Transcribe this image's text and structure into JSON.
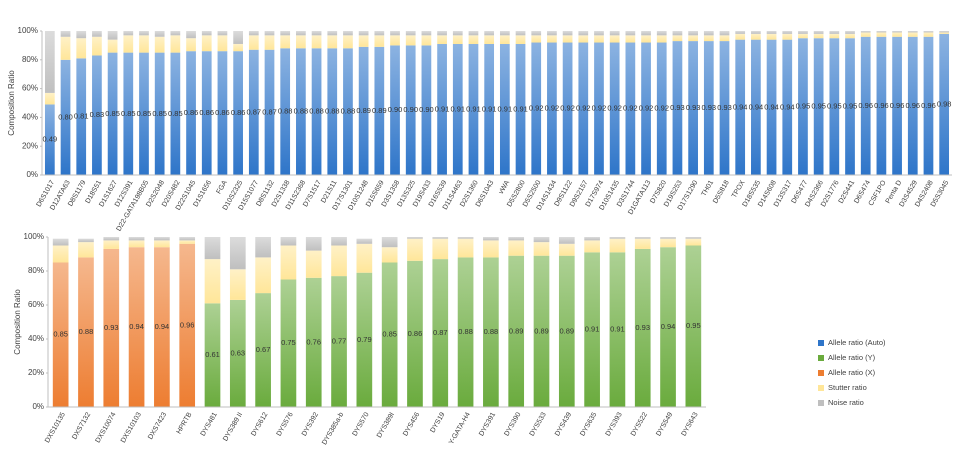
{
  "chart_data": [
    {
      "type": "bar",
      "stacked": true,
      "ylabel": "Composition Ratio",
      "categories": [
        "D6S1017",
        "D12ATA63",
        "D8S1179",
        "D18S51",
        "D1S1627",
        "D12S391",
        "D22-GATA198B05",
        "D2S2048",
        "D20S482",
        "D22S1045",
        "D1S1656",
        "FGA",
        "D10S2325",
        "D15S1077",
        "D8S1132",
        "D2S1338",
        "D11S2368",
        "D7S1517",
        "D21S11",
        "D17S1301",
        "D10S1248",
        "D15S659",
        "D3S1358",
        "D13S325",
        "D19S433",
        "D16S539",
        "D11S4463",
        "D2S1360",
        "D6S1043",
        "vWA",
        "D5S2800",
        "D5S2500",
        "D14S1434",
        "D9S1122",
        "D9S2157",
        "D17S974",
        "D10S1435",
        "D3S1744",
        "D1GATA113",
        "D7S820",
        "D19S253",
        "D17S1290",
        "TH01",
        "D5S818",
        "TPOX",
        "D18S535",
        "D14S608",
        "D13S317",
        "D6S477",
        "D4S2366",
        "D2S1776",
        "D2S441",
        "D6S474",
        "CSF1PO",
        "Penta D",
        "D3S4529",
        "D4S2408",
        "D5S3045"
      ],
      "series": [
        {
          "name": "Allele ratio (Auto)",
          "color": "#2e75c9",
          "values": [
            49,
            80,
            81,
            83,
            85,
            85,
            85,
            85,
            85,
            86,
            86,
            86,
            86,
            87,
            87,
            88,
            88,
            88,
            88,
            88,
            89,
            89,
            90,
            90,
            90,
            91,
            91,
            91,
            91,
            91,
            91,
            92,
            92,
            92,
            92,
            92,
            92,
            92,
            92,
            92,
            93,
            93,
            93,
            93,
            94,
            94,
            94,
            94,
            95,
            95,
            95,
            95,
            96,
            96,
            96,
            96,
            96,
            98
          ],
          "value_labels": [
            "0.49",
            "0.80",
            "0.81",
            "0.83",
            "0.85",
            "0.85",
            "0.85",
            "0.85",
            "0.85",
            "0.86",
            "0.86",
            "0.86",
            "0.86",
            "0.87",
            "0.87",
            "0.88",
            "0.88",
            "0.88",
            "0.88",
            "0.88",
            "0.89",
            "0.89",
            "0.90",
            "0.90",
            "0.90",
            "0.91",
            "0.91",
            "0.91",
            "0.91",
            "0.91",
            "0.91",
            "0.92",
            "0.92",
            "0.92",
            "0.92",
            "0.92",
            "0.92",
            "0.92",
            "0.92",
            "0.92",
            "0.93",
            "0.93",
            "0.93",
            "0.93",
            "0.94",
            "0.94",
            "0.94",
            "0.94",
            "0.95",
            "0.95",
            "0.95",
            "0.95",
            "0.96",
            "0.96",
            "0.96",
            "0.96",
            "0.96",
            "0.98"
          ]
        },
        {
          "color": "#ffe699",
          "values": [
            8,
            16,
            14,
            13,
            9,
            12,
            12,
            11,
            12,
            9,
            11,
            11,
            5,
            10,
            10,
            9,
            9,
            9,
            9,
            9,
            8,
            8,
            7,
            7,
            7,
            6,
            6,
            6,
            6,
            6,
            6,
            5,
            5,
            5,
            5,
            5,
            5,
            5,
            5,
            5,
            4,
            4,
            4,
            4,
            4,
            4,
            4,
            4,
            3,
            3,
            3,
            3,
            3,
            3,
            3,
            3,
            3,
            1
          ]
        },
        {
          "color": "#bfbfbf",
          "values": [
            43,
            4,
            5,
            4,
            6,
            3,
            3,
            4,
            3,
            5,
            3,
            3,
            9,
            3,
            3,
            3,
            3,
            3,
            3,
            3,
            3,
            3,
            3,
            3,
            3,
            3,
            3,
            3,
            3,
            3,
            3,
            3,
            3,
            3,
            3,
            3,
            3,
            3,
            3,
            3,
            3,
            3,
            3,
            3,
            2,
            2,
            2,
            2,
            2,
            2,
            2,
            2,
            1,
            1,
            1,
            1,
            1,
            1
          ]
        }
      ],
      "ylim": [
        0,
        100
      ],
      "yticks": [
        {
          "value": 0,
          "label": "0%"
        },
        {
          "value": 20,
          "label": "20%"
        },
        {
          "value": 40,
          "label": "40%"
        },
        {
          "value": 60,
          "label": "60%"
        },
        {
          "value": 80,
          "label": "80%"
        },
        {
          "value": 100,
          "label": "100%"
        }
      ],
      "grid": false
    },
    {
      "type": "bar",
      "stacked": true,
      "ylabel": "Composition Ratio",
      "categories": [
        "DXS10135",
        "DXS7132",
        "DXS10074",
        "DXS10103",
        "DXS7423",
        "HPRTB",
        "DYS481",
        "DYS389 II",
        "DYS612",
        "DYS576",
        "DYS392",
        "DYS385a-b",
        "DYS570",
        "DYS389I",
        "DYS456",
        "DYS19",
        "Y-GATA-H4",
        "DYS391",
        "DYS390",
        "DYS533",
        "DYS439",
        "DYS635",
        "DYS393",
        "DYS522",
        "DYS549",
        "DYS643"
      ],
      "series": [
        {
          "name": "Allele ratio (Y)",
          "color": "#6aab3d",
          "values": [
            null,
            null,
            null,
            null,
            null,
            null,
            61,
            63,
            67,
            75,
            76,
            77,
            79,
            85,
            86,
            87,
            88,
            88,
            89,
            89,
            89,
            91,
            91,
            93,
            94,
            95
          ],
          "value_labels": [
            null,
            null,
            null,
            null,
            null,
            null,
            "0.61",
            "0.63",
            "0.67",
            "0.75",
            "0.76",
            "0.77",
            "0.79",
            "0.85",
            "0.86",
            "0.87",
            "0.88",
            "0.88",
            "0.89",
            "0.89",
            "0.89",
            "0.91",
            "0.91",
            "0.93",
            "0.94",
            "0.95"
          ]
        },
        {
          "name": "Allele ratio (X)",
          "color": "#ed7d31",
          "values": [
            85,
            88,
            93,
            94,
            94,
            96,
            null,
            null,
            null,
            null,
            null,
            null,
            null,
            null,
            null,
            null,
            null,
            null,
            null,
            null,
            null,
            null,
            null,
            null,
            null,
            null
          ],
          "value_labels": [
            "0.85",
            "0.88",
            "0.93",
            "0.94",
            "0.94",
            "0.96",
            null,
            null,
            null,
            null,
            null,
            null,
            null,
            null,
            null,
            null,
            null,
            null,
            null,
            null,
            null,
            null,
            null,
            null,
            null,
            null
          ]
        },
        {
          "name": "Stutter ratio",
          "color": "#ffe699",
          "values": [
            10,
            9,
            5,
            4,
            4,
            2,
            26,
            18,
            21,
            20,
            16,
            18,
            17,
            9,
            13,
            12,
            11,
            10,
            9,
            8,
            7,
            7,
            8,
            6,
            5,
            4
          ]
        },
        {
          "name": "Noise ratio",
          "color": "#bfbfbf",
          "values": [
            4,
            2,
            2,
            2,
            2,
            2,
            13,
            19,
            12,
            5,
            8,
            5,
            3,
            6,
            1,
            1,
            1,
            2,
            2,
            3,
            4,
            2,
            1,
            1,
            1,
            1
          ]
        }
      ],
      "ylim": [
        0,
        100
      ],
      "yticks": [
        {
          "value": 0,
          "label": "0%"
        },
        {
          "value": 20,
          "label": "20%"
        },
        {
          "value": 40,
          "label": "40%"
        },
        {
          "value": 60,
          "label": "60%"
        },
        {
          "value": 80,
          "label": "80%"
        },
        {
          "value": 100,
          "label": "100%"
        }
      ],
      "grid": false
    }
  ]
}
